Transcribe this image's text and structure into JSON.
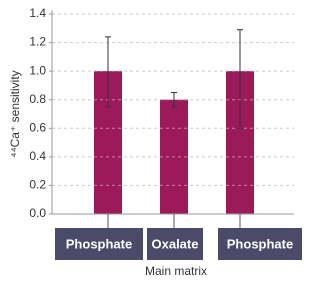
{
  "chart_data": {
    "type": "bar",
    "y_label": "⁴⁴Ca⁺ sensitivity",
    "x_label": "Main matrix",
    "categories": [
      "Phosphate",
      "Oxalate",
      "Phosphate"
    ],
    "values": [
      1.0,
      0.8,
      1.0
    ],
    "error_low": [
      0.25,
      0.05,
      0.4
    ],
    "error_high": [
      0.24,
      0.05,
      0.29
    ],
    "color": "#9c1a5a",
    "ylim": [
      0,
      1.4
    ],
    "yticks": [
      {
        "value": 0,
        "label": "0.0"
      },
      {
        "value": 0.2,
        "label": "0.2"
      },
      {
        "value": 0.4,
        "label": "0.4"
      },
      {
        "value": 0.6,
        "label": "0.6"
      },
      {
        "value": 0.8,
        "label": "0.8"
      },
      {
        "value": 1.0,
        "label": "1.0"
      },
      {
        "value": 1.2,
        "label": "1.2"
      },
      {
        "value": 1.4,
        "label": "1.4"
      }
    ],
    "grid": true
  }
}
